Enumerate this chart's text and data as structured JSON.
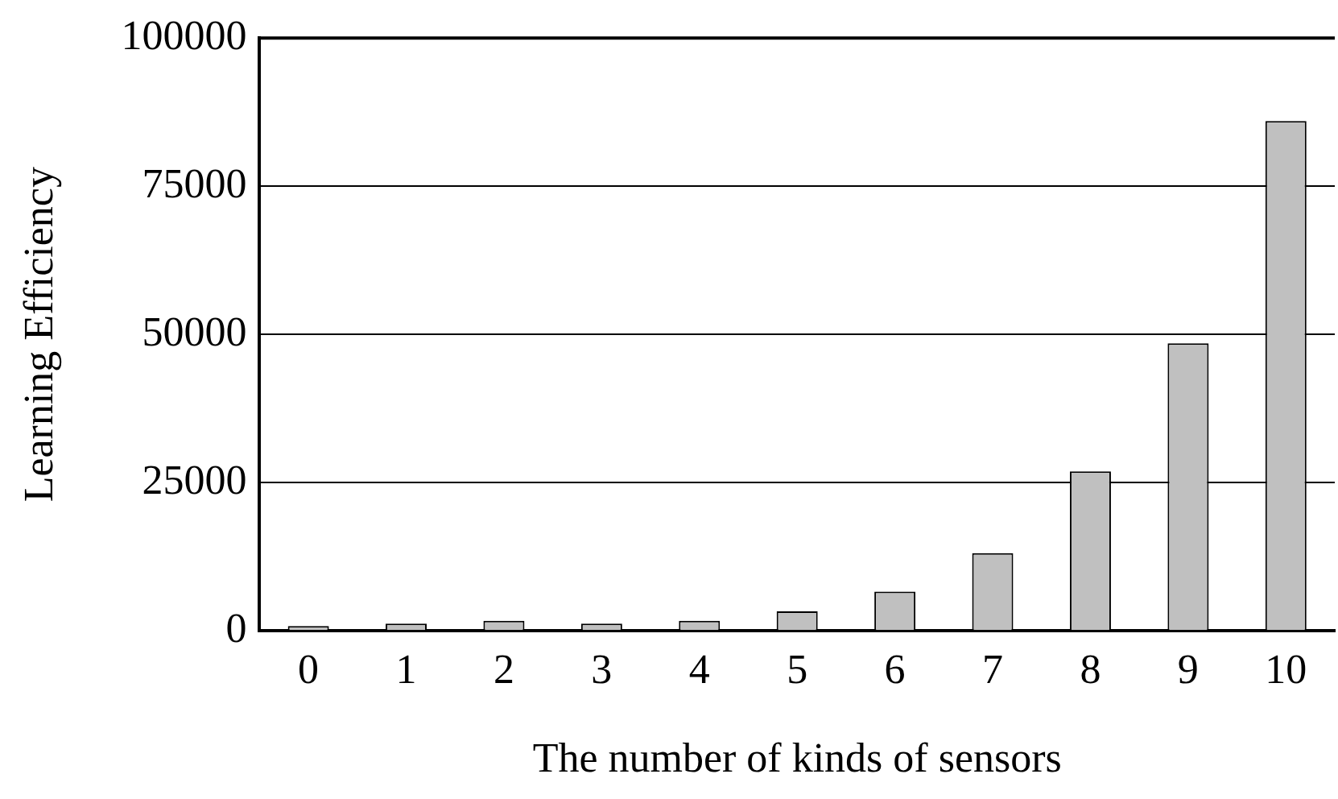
{
  "chart_data": {
    "type": "bar",
    "xlabel": "The number of kinds of sensors",
    "ylabel": "Learning Efficiency",
    "categories": [
      "0",
      "1",
      "2",
      "3",
      "4",
      "5",
      "6",
      "7",
      "8",
      "9",
      "10"
    ],
    "values": [
      800,
      1200,
      1700,
      1200,
      1700,
      3300,
      6600,
      13100,
      26900,
      48500,
      86000
    ],
    "color": "#c0c0c0",
    "ylim": [
      0,
      100000
    ],
    "yticks": [
      0,
      25000,
      50000,
      75000,
      100000
    ],
    "grid": "y"
  }
}
